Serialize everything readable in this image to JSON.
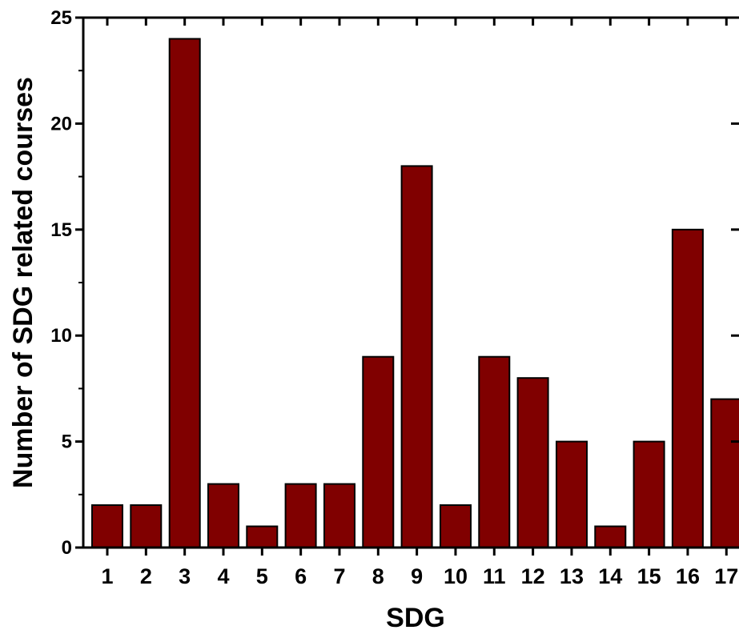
{
  "chart_data": {
    "type": "bar",
    "title": "",
    "xlabel": "SDG",
    "ylabel": "Number of SDG related courses",
    "categories": [
      "1",
      "2",
      "3",
      "4",
      "5",
      "6",
      "7",
      "8",
      "9",
      "10",
      "11",
      "12",
      "13",
      "14",
      "15",
      "16",
      "17"
    ],
    "series": [
      {
        "values": [
          2,
          2,
          24,
          3,
          1,
          3,
          3,
          9,
          18,
          2,
          9,
          8,
          5,
          1,
          5,
          15,
          7
        ]
      }
    ],
    "ylim": [
      0,
      25
    ],
    "yticks": [
      "0",
      "5",
      "10",
      "15",
      "20",
      "25"
    ],
    "grid": false,
    "legend": "none",
    "bar_color": "#800000",
    "bar_edge_color": "#000000"
  }
}
